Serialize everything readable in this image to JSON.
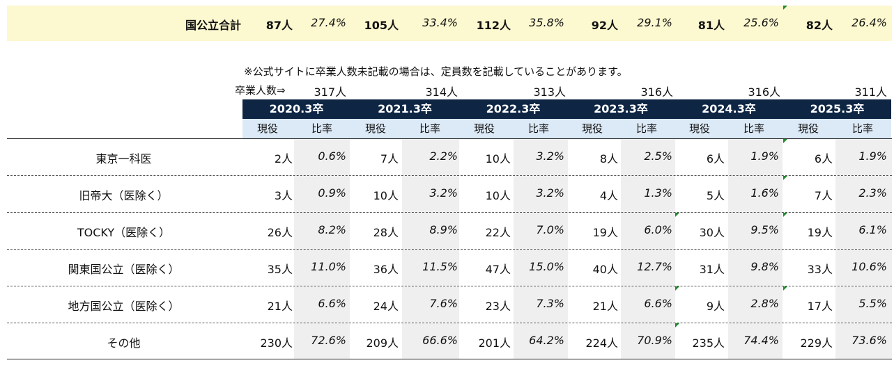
{
  "summary": {
    "label": "国公立合計",
    "values": [
      {
        "count": "87人",
        "ratio": "27.4%"
      },
      {
        "count": "105人",
        "ratio": "33.4%"
      },
      {
        "count": "112人",
        "ratio": "35.8%"
      },
      {
        "count": "92人",
        "ratio": "29.1%"
      },
      {
        "count": "81人",
        "ratio": "25.6%"
      },
      {
        "count": "82人",
        "ratio": "26.4%"
      }
    ]
  },
  "note": "※公式サイトに卒業人数未記載の場合は、定員数を記載していることがあります。",
  "graduates": {
    "label": "卒業人数⇒",
    "counts": [
      "317人",
      "314人",
      "313人",
      "316人",
      "316人",
      "311人"
    ]
  },
  "years": [
    "2020.3卒",
    "2021.3卒",
    "2022.3卒",
    "2023.3卒",
    "2024.3卒",
    "2025.3卒"
  ],
  "subheaders": {
    "current": "現役",
    "ratio": "比率"
  },
  "rows": [
    {
      "label": "東京一科医",
      "cells": [
        {
          "count": "2人",
          "ratio": "0.6%"
        },
        {
          "count": "7人",
          "ratio": "2.2%"
        },
        {
          "count": "10人",
          "ratio": "3.2%"
        },
        {
          "count": "8人",
          "ratio": "2.5%"
        },
        {
          "count": "6人",
          "ratio": "1.9%"
        },
        {
          "count": "6人",
          "ratio": "1.9%"
        }
      ]
    },
    {
      "label": "旧帝大（医除く）",
      "cells": [
        {
          "count": "3人",
          "ratio": "0.9%"
        },
        {
          "count": "10人",
          "ratio": "3.2%"
        },
        {
          "count": "10人",
          "ratio": "3.2%"
        },
        {
          "count": "4人",
          "ratio": "1.3%"
        },
        {
          "count": "5人",
          "ratio": "1.6%"
        },
        {
          "count": "7人",
          "ratio": "2.3%"
        }
      ]
    },
    {
      "label": "TOCKY（医除く）",
      "cells": [
        {
          "count": "26人",
          "ratio": "8.2%"
        },
        {
          "count": "28人",
          "ratio": "8.9%"
        },
        {
          "count": "22人",
          "ratio": "7.0%"
        },
        {
          "count": "19人",
          "ratio": "6.0%"
        },
        {
          "count": "30人",
          "ratio": "9.5%"
        },
        {
          "count": "19人",
          "ratio": "6.1%"
        }
      ]
    },
    {
      "label": "関東国公立（医除く）",
      "cells": [
        {
          "count": "35人",
          "ratio": "11.0%"
        },
        {
          "count": "36人",
          "ratio": "11.5%"
        },
        {
          "count": "47人",
          "ratio": "15.0%"
        },
        {
          "count": "40人",
          "ratio": "12.7%"
        },
        {
          "count": "31人",
          "ratio": "9.8%"
        },
        {
          "count": "33人",
          "ratio": "10.6%"
        }
      ]
    },
    {
      "label": "地方国公立（医除く）",
      "cells": [
        {
          "count": "21人",
          "ratio": "6.6%"
        },
        {
          "count": "24人",
          "ratio": "7.6%"
        },
        {
          "count": "23人",
          "ratio": "7.3%"
        },
        {
          "count": "21人",
          "ratio": "6.6%"
        },
        {
          "count": "9人",
          "ratio": "2.8%"
        },
        {
          "count": "17人",
          "ratio": "5.5%"
        }
      ]
    },
    {
      "label": "その他",
      "cells": [
        {
          "count": "230人",
          "ratio": "72.6%"
        },
        {
          "count": "209人",
          "ratio": "66.6%"
        },
        {
          "count": "201人",
          "ratio": "64.2%"
        },
        {
          "count": "224人",
          "ratio": "70.9%"
        },
        {
          "count": "235人",
          "ratio": "74.4%"
        },
        {
          "count": "229人",
          "ratio": "73.6%"
        }
      ]
    }
  ],
  "colors": {
    "summary_bg": "#fcf8cf",
    "year_header_bg": "#0e2644",
    "subheader_bg": "#dce9f6",
    "ratio_shade": "#efefef",
    "comment_marker": "#1f8a2b"
  }
}
